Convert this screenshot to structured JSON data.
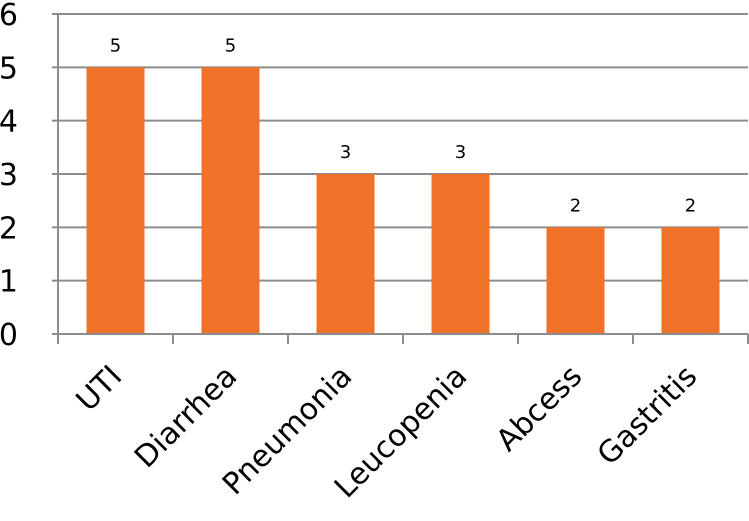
{
  "chart_data": {
    "type": "bar",
    "title": "",
    "xlabel": "",
    "ylabel": "",
    "categories": [
      "UTI",
      "Diarrhea",
      "Pneumonia",
      "Leucopenia",
      "Abcess",
      "Gastritis"
    ],
    "values": [
      5,
      5,
      3,
      3,
      2,
      2
    ],
    "data_labels": [
      "5",
      "5",
      "3",
      "3",
      "2",
      "2"
    ],
    "ylim": [
      0,
      6
    ],
    "yticks": [
      "0",
      "1",
      "2",
      "3",
      "4",
      "5",
      "6"
    ],
    "grid": true,
    "legend": "none",
    "colors": {
      "bar": "#F07228",
      "grid": "#8c8c8c",
      "axis": "#8c8c8c"
    }
  }
}
